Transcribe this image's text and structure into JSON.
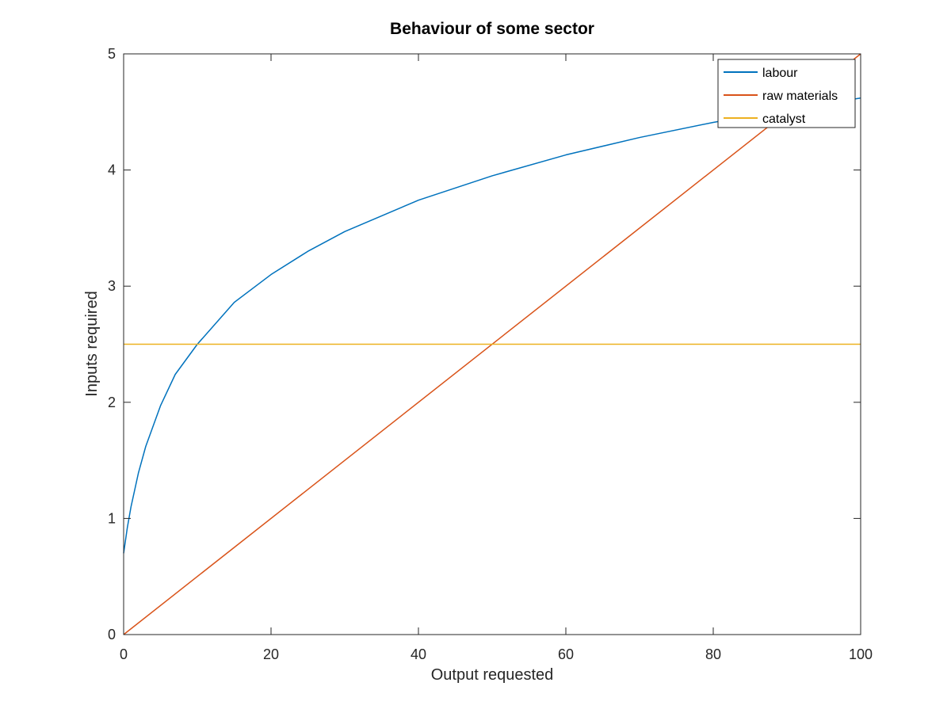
{
  "chart_data": {
    "type": "line",
    "title": "Behaviour of some sector",
    "xlabel": "Output requested",
    "ylabel": "Inputs required",
    "xlim": [
      0,
      100
    ],
    "ylim": [
      0,
      5
    ],
    "xticks": [
      0,
      20,
      40,
      60,
      80,
      100
    ],
    "yticks": [
      0,
      1,
      2,
      3,
      4,
      5
    ],
    "xtick_labels": [
      "0",
      "20",
      "40",
      "60",
      "80",
      "100"
    ],
    "ytick_labels": [
      "0",
      "1",
      "2",
      "3",
      "4",
      "5"
    ],
    "grid": false,
    "legend_position": "top-right",
    "series": [
      {
        "name": "labour",
        "color": "#0072BD",
        "x": [
          0,
          0.5,
          1,
          2,
          3,
          5,
          7,
          10,
          15,
          20,
          25,
          30,
          40,
          50,
          60,
          70,
          80,
          90,
          100
        ],
        "y": [
          0.7,
          0.92,
          1.1,
          1.39,
          1.62,
          1.97,
          2.24,
          2.5,
          2.86,
          3.1,
          3.3,
          3.47,
          3.74,
          3.95,
          4.13,
          4.28,
          4.41,
          4.52,
          4.62
        ]
      },
      {
        "name": "raw materials",
        "color": "#D95319",
        "x": [
          0,
          100
        ],
        "y": [
          0,
          5
        ]
      },
      {
        "name": "catalyst",
        "color": "#EDB120",
        "x": [
          0,
          100
        ],
        "y": [
          2.5,
          2.5
        ]
      }
    ]
  }
}
